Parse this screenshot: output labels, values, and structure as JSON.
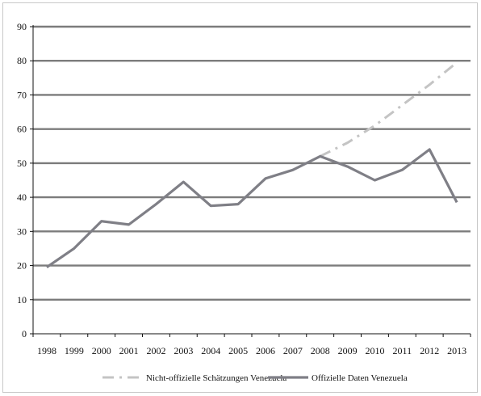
{
  "chart_data": {
    "type": "line",
    "title": "",
    "xlabel": "",
    "ylabel": "",
    "x": [
      "1998",
      "1999",
      "2000",
      "2001",
      "2002",
      "2003",
      "2004",
      "2005",
      "2006",
      "2007",
      "2008",
      "2009",
      "2010",
      "2011",
      "2012",
      "2013"
    ],
    "ylim": [
      0,
      90
    ],
    "yticks": [
      "0",
      "10",
      "20",
      "30",
      "40",
      "50",
      "60",
      "70",
      "80",
      "90"
    ],
    "grid": true,
    "legend_position": "bottom",
    "series": [
      {
        "name": "Nicht-offizielle Schätzungen Venezuela",
        "style": "dash-dot",
        "color": "#c4c4c4",
        "x": [
          "2008",
          "2009",
          "2010",
          "2011",
          "2012",
          "2013"
        ],
        "values": [
          52,
          56,
          61,
          67,
          73,
          79.5
        ]
      },
      {
        "name": "Offizielle Daten Venezuela",
        "style": "solid",
        "color": "#7f7f86",
        "x": [
          "1998",
          "1999",
          "2000",
          "2001",
          "2002",
          "2003",
          "2004",
          "2005",
          "2006",
          "2007",
          "2008",
          "2009",
          "2010",
          "2011",
          "2012",
          "2013"
        ],
        "values": [
          19.5,
          25,
          33,
          32,
          38,
          44.5,
          37.5,
          38,
          45.5,
          48,
          52,
          49,
          45,
          48,
          54,
          38.5
        ]
      }
    ]
  }
}
